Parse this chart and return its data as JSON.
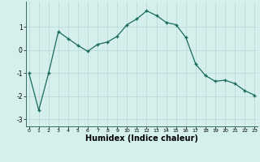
{
  "x": [
    0,
    1,
    2,
    3,
    4,
    5,
    6,
    7,
    8,
    9,
    10,
    11,
    12,
    13,
    14,
    15,
    16,
    17,
    18,
    19,
    20,
    21,
    22,
    23
  ],
  "y": [
    -1.0,
    -2.6,
    -1.0,
    0.8,
    0.5,
    0.2,
    -0.05,
    0.25,
    0.35,
    0.6,
    1.1,
    1.35,
    1.7,
    1.5,
    1.2,
    1.1,
    0.55,
    -0.6,
    -1.1,
    -1.35,
    -1.3,
    -1.45,
    -1.75,
    -1.95
  ],
  "line_color": "#1a6b5e",
  "marker": "+",
  "marker_size": 3.5,
  "linewidth": 0.9,
  "xlabel": "Humidex (Indice chaleur)",
  "xlabel_fontsize": 7,
  "bg_color": "#d4efec",
  "grid_color": "#b8d8d4",
  "xticks": [
    0,
    1,
    2,
    3,
    4,
    5,
    6,
    7,
    8,
    9,
    10,
    11,
    12,
    13,
    14,
    15,
    16,
    17,
    18,
    19,
    20,
    21,
    22,
    23
  ],
  "yticks": [
    -3,
    -2,
    -1,
    0,
    1
  ],
  "xlim": [
    -0.3,
    23.3
  ],
  "ylim": [
    -3.3,
    2.1
  ]
}
